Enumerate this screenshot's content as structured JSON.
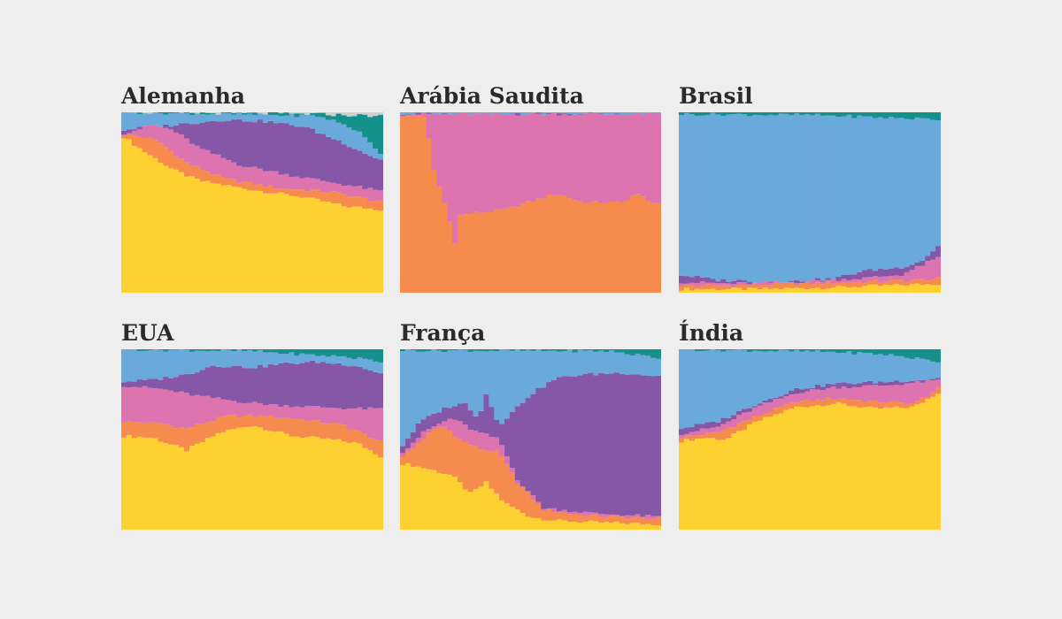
{
  "colors": {
    "background": "#eeeeee",
    "yellow": "#fdd131",
    "orange": "#f68b4e",
    "pink": "#dd74b0",
    "purple": "#8557a6",
    "blue": "#6aa9dc",
    "teal": "#14918b",
    "gray": "#cfcfcf"
  },
  "chart_data": [
    {
      "type": "area",
      "title": "Alemanha",
      "n_years": 50,
      "stack_order": [
        "yellow",
        "orange",
        "pink",
        "purple",
        "blue",
        "teal",
        "gray"
      ],
      "boundaries": [
        [
          [
            0,
            0.875
          ],
          [
            0.08,
            0.79
          ],
          [
            0.2,
            0.68
          ],
          [
            0.3,
            0.62
          ],
          [
            0.5,
            0.57
          ],
          [
            0.7,
            0.53
          ],
          [
            0.85,
            0.48
          ],
          [
            1,
            0.46
          ]
        ],
        [
          [
            0,
            0.88
          ],
          [
            0.05,
            0.87
          ],
          [
            0.1,
            0.86
          ],
          [
            0.15,
            0.83
          ],
          [
            0.25,
            0.72
          ],
          [
            0.4,
            0.63
          ],
          [
            0.6,
            0.58
          ],
          [
            0.8,
            0.56
          ],
          [
            1,
            0.5
          ]
        ],
        [
          [
            0,
            0.88
          ],
          [
            0.05,
            0.9
          ],
          [
            0.12,
            0.93
          ],
          [
            0.2,
            0.9
          ],
          [
            0.3,
            0.8
          ],
          [
            0.45,
            0.71
          ],
          [
            0.65,
            0.65
          ],
          [
            0.85,
            0.6
          ],
          [
            1,
            0.56
          ]
        ],
        [
          [
            0,
            0.9
          ],
          [
            0.05,
            0.91
          ],
          [
            0.2,
            0.93
          ],
          [
            0.4,
            0.96
          ],
          [
            0.55,
            0.95
          ],
          [
            0.7,
            0.92
          ],
          [
            0.85,
            0.83
          ],
          [
            0.95,
            0.76
          ],
          [
            1,
            0.73
          ]
        ],
        [
          [
            0,
            1.0
          ],
          [
            0.75,
            0.98
          ],
          [
            0.82,
            0.95
          ],
          [
            0.9,
            0.9
          ],
          [
            1,
            0.76
          ]
        ],
        [
          [
            0,
            1.0
          ],
          [
            0.75,
            0.99
          ],
          [
            0.85,
            0.985
          ],
          [
            1,
            0.98
          ]
        ],
        [
          [
            0,
            1.0
          ],
          [
            1,
            1.0
          ]
        ]
      ]
    },
    {
      "type": "area",
      "title": "Arábia Saudita",
      "n_years": 50,
      "stack_order": [
        "yellow",
        "orange",
        "pink",
        "purple",
        "blue",
        "teal",
        "gray"
      ],
      "boundaries": [
        [
          [
            0,
            0.0
          ],
          [
            1,
            0.0
          ]
        ],
        [
          [
            0,
            0.98
          ],
          [
            0.1,
            0.98
          ],
          [
            0.12,
            0.72
          ],
          [
            0.18,
            0.45
          ],
          [
            0.21,
            0.28
          ],
          [
            0.23,
            0.43
          ],
          [
            0.4,
            0.46
          ],
          [
            0.6,
            0.55
          ],
          [
            0.7,
            0.5
          ],
          [
            0.85,
            0.5
          ],
          [
            0.9,
            0.55
          ],
          [
            1,
            0.48
          ]
        ],
        [
          [
            0,
            0.99
          ],
          [
            1,
            0.99
          ]
        ],
        [
          [
            0,
            0.99
          ],
          [
            1,
            0.99
          ]
        ],
        [
          [
            0,
            1.0
          ],
          [
            1,
            1.0
          ]
        ],
        [
          [
            0,
            1.0
          ],
          [
            1,
            1.0
          ]
        ],
        [
          [
            0,
            1.0
          ],
          [
            1,
            1.0
          ]
        ]
      ]
    },
    {
      "type": "area",
      "title": "Brasil",
      "n_years": 50,
      "stack_order": [
        "yellow",
        "orange",
        "pink",
        "purple",
        "blue",
        "teal",
        "gray"
      ],
      "boundaries": [
        [
          [
            0,
            0.02
          ],
          [
            0.3,
            0.02
          ],
          [
            0.6,
            0.03
          ],
          [
            0.8,
            0.04
          ],
          [
            1,
            0.05
          ]
        ],
        [
          [
            0,
            0.04
          ],
          [
            0.2,
            0.04
          ],
          [
            0.45,
            0.05
          ],
          [
            0.7,
            0.06
          ],
          [
            0.9,
            0.07
          ],
          [
            1,
            0.08
          ]
        ],
        [
          [
            0,
            0.06
          ],
          [
            0.2,
            0.05
          ],
          [
            0.45,
            0.06
          ],
          [
            0.7,
            0.08
          ],
          [
            0.85,
            0.1
          ],
          [
            1,
            0.2
          ]
        ],
        [
          [
            0,
            0.1
          ],
          [
            0.15,
            0.07
          ],
          [
            0.4,
            0.06
          ],
          [
            0.6,
            0.08
          ],
          [
            0.7,
            0.12
          ],
          [
            0.85,
            0.14
          ],
          [
            0.93,
            0.18
          ],
          [
            1,
            0.27
          ]
        ],
        [
          [
            0,
            0.99
          ],
          [
            0.5,
            0.985
          ],
          [
            0.8,
            0.97
          ],
          [
            1,
            0.96
          ]
        ],
        [
          [
            0,
            1.0
          ],
          [
            1,
            1.0
          ]
        ],
        [
          [
            0,
            1.0
          ],
          [
            1,
            1.0
          ]
        ]
      ]
    },
    {
      "type": "area",
      "title": "EUA",
      "n_years": 50,
      "stack_order": [
        "yellow",
        "orange",
        "pink",
        "purple",
        "blue",
        "teal",
        "gray"
      ],
      "boundaries": [
        [
          [
            0,
            0.52
          ],
          [
            0.12,
            0.51
          ],
          [
            0.25,
            0.44
          ],
          [
            0.38,
            0.54
          ],
          [
            0.5,
            0.58
          ],
          [
            0.65,
            0.52
          ],
          [
            0.8,
            0.5
          ],
          [
            0.9,
            0.48
          ],
          [
            1,
            0.4
          ]
        ],
        [
          [
            0,
            0.6
          ],
          [
            0.15,
            0.59
          ],
          [
            0.25,
            0.56
          ],
          [
            0.4,
            0.63
          ],
          [
            0.55,
            0.63
          ],
          [
            0.7,
            0.61
          ],
          [
            0.85,
            0.58
          ],
          [
            1,
            0.48
          ]
        ],
        [
          [
            0,
            0.8
          ],
          [
            0.15,
            0.78
          ],
          [
            0.3,
            0.74
          ],
          [
            0.45,
            0.71
          ],
          [
            0.6,
            0.69
          ],
          [
            0.75,
            0.68
          ],
          [
            0.9,
            0.67
          ],
          [
            1,
            0.67
          ]
        ],
        [
          [
            0,
            0.82
          ],
          [
            0.12,
            0.83
          ],
          [
            0.25,
            0.86
          ],
          [
            0.35,
            0.91
          ],
          [
            0.5,
            0.9
          ],
          [
            0.62,
            0.92
          ],
          [
            0.75,
            0.93
          ],
          [
            0.9,
            0.91
          ],
          [
            1,
            0.86
          ]
        ],
        [
          [
            0,
            1.0
          ],
          [
            0.5,
            0.99
          ],
          [
            0.7,
            0.97
          ],
          [
            0.85,
            0.96
          ],
          [
            1,
            0.93
          ]
        ],
        [
          [
            0,
            1.0
          ],
          [
            1,
            1.0
          ]
        ],
        [
          [
            0,
            1.0
          ],
          [
            1,
            1.0
          ]
        ]
      ]
    },
    {
      "type": "area",
      "title": "França",
      "n_years": 50,
      "stack_order": [
        "yellow",
        "orange",
        "pink",
        "purple",
        "blue",
        "teal",
        "gray"
      ],
      "boundaries": [
        [
          [
            0,
            0.37
          ],
          [
            0.1,
            0.34
          ],
          [
            0.2,
            0.3
          ],
          [
            0.27,
            0.2
          ],
          [
            0.33,
            0.26
          ],
          [
            0.4,
            0.15
          ],
          [
            0.5,
            0.07
          ],
          [
            0.6,
            0.05
          ],
          [
            0.75,
            0.04
          ],
          [
            1,
            0.03
          ]
        ],
        [
          [
            0,
            0.4
          ],
          [
            0.05,
            0.45
          ],
          [
            0.1,
            0.52
          ],
          [
            0.16,
            0.58
          ],
          [
            0.23,
            0.5
          ],
          [
            0.3,
            0.45
          ],
          [
            0.38,
            0.43
          ],
          [
            0.45,
            0.26
          ],
          [
            0.55,
            0.11
          ],
          [
            0.7,
            0.08
          ],
          [
            1,
            0.06
          ]
        ],
        [
          [
            0,
            0.42
          ],
          [
            0.1,
            0.55
          ],
          [
            0.2,
            0.62
          ],
          [
            0.28,
            0.55
          ],
          [
            0.38,
            0.5
          ],
          [
            0.45,
            0.28
          ],
          [
            0.55,
            0.12
          ],
          [
            0.75,
            0.09
          ],
          [
            1,
            0.07
          ]
        ],
        [
          [
            0,
            0.45
          ],
          [
            0.08,
            0.6
          ],
          [
            0.18,
            0.68
          ],
          [
            0.25,
            0.7
          ],
          [
            0.3,
            0.62
          ],
          [
            0.33,
            0.75
          ],
          [
            0.38,
            0.58
          ],
          [
            0.5,
            0.75
          ],
          [
            0.6,
            0.84
          ],
          [
            0.7,
            0.86
          ],
          [
            0.85,
            0.87
          ],
          [
            1,
            0.85
          ]
        ],
        [
          [
            0,
            0.995
          ],
          [
            0.8,
            0.99
          ],
          [
            0.9,
            0.97
          ],
          [
            1,
            0.95
          ]
        ],
        [
          [
            0,
            1.0
          ],
          [
            1,
            1.0
          ]
        ],
        [
          [
            0,
            1.0
          ],
          [
            1,
            1.0
          ]
        ]
      ]
    },
    {
      "type": "area",
      "title": "Índia",
      "n_years": 50,
      "stack_order": [
        "yellow",
        "orange",
        "pink",
        "purple",
        "blue",
        "teal",
        "gray"
      ],
      "boundaries": [
        [
          [
            0,
            0.49
          ],
          [
            0.1,
            0.51
          ],
          [
            0.18,
            0.5
          ],
          [
            0.3,
            0.6
          ],
          [
            0.45,
            0.68
          ],
          [
            0.6,
            0.7
          ],
          [
            0.75,
            0.67
          ],
          [
            0.9,
            0.68
          ],
          [
            1,
            0.77
          ]
        ],
        [
          [
            0,
            0.51
          ],
          [
            0.15,
            0.54
          ],
          [
            0.3,
            0.63
          ],
          [
            0.45,
            0.71
          ],
          [
            0.6,
            0.73
          ],
          [
            0.75,
            0.71
          ],
          [
            0.9,
            0.7
          ],
          [
            1,
            0.79
          ]
        ],
        [
          [
            0,
            0.53
          ],
          [
            0.15,
            0.57
          ],
          [
            0.3,
            0.68
          ],
          [
            0.45,
            0.76
          ],
          [
            0.6,
            0.79
          ],
          [
            0.8,
            0.8
          ],
          [
            1,
            0.83
          ]
        ],
        [
          [
            0,
            0.56
          ],
          [
            0.15,
            0.6
          ],
          [
            0.3,
            0.7
          ],
          [
            0.45,
            0.78
          ],
          [
            0.6,
            0.81
          ],
          [
            0.8,
            0.82
          ],
          [
            1,
            0.84
          ]
        ],
        [
          [
            0,
            1.0
          ],
          [
            0.6,
            0.985
          ],
          [
            0.8,
            0.97
          ],
          [
            1,
            0.93
          ]
        ],
        [
          [
            0,
            1.0
          ],
          [
            1,
            1.0
          ]
        ],
        [
          [
            0,
            1.0
          ],
          [
            1,
            1.0
          ]
        ]
      ]
    }
  ]
}
